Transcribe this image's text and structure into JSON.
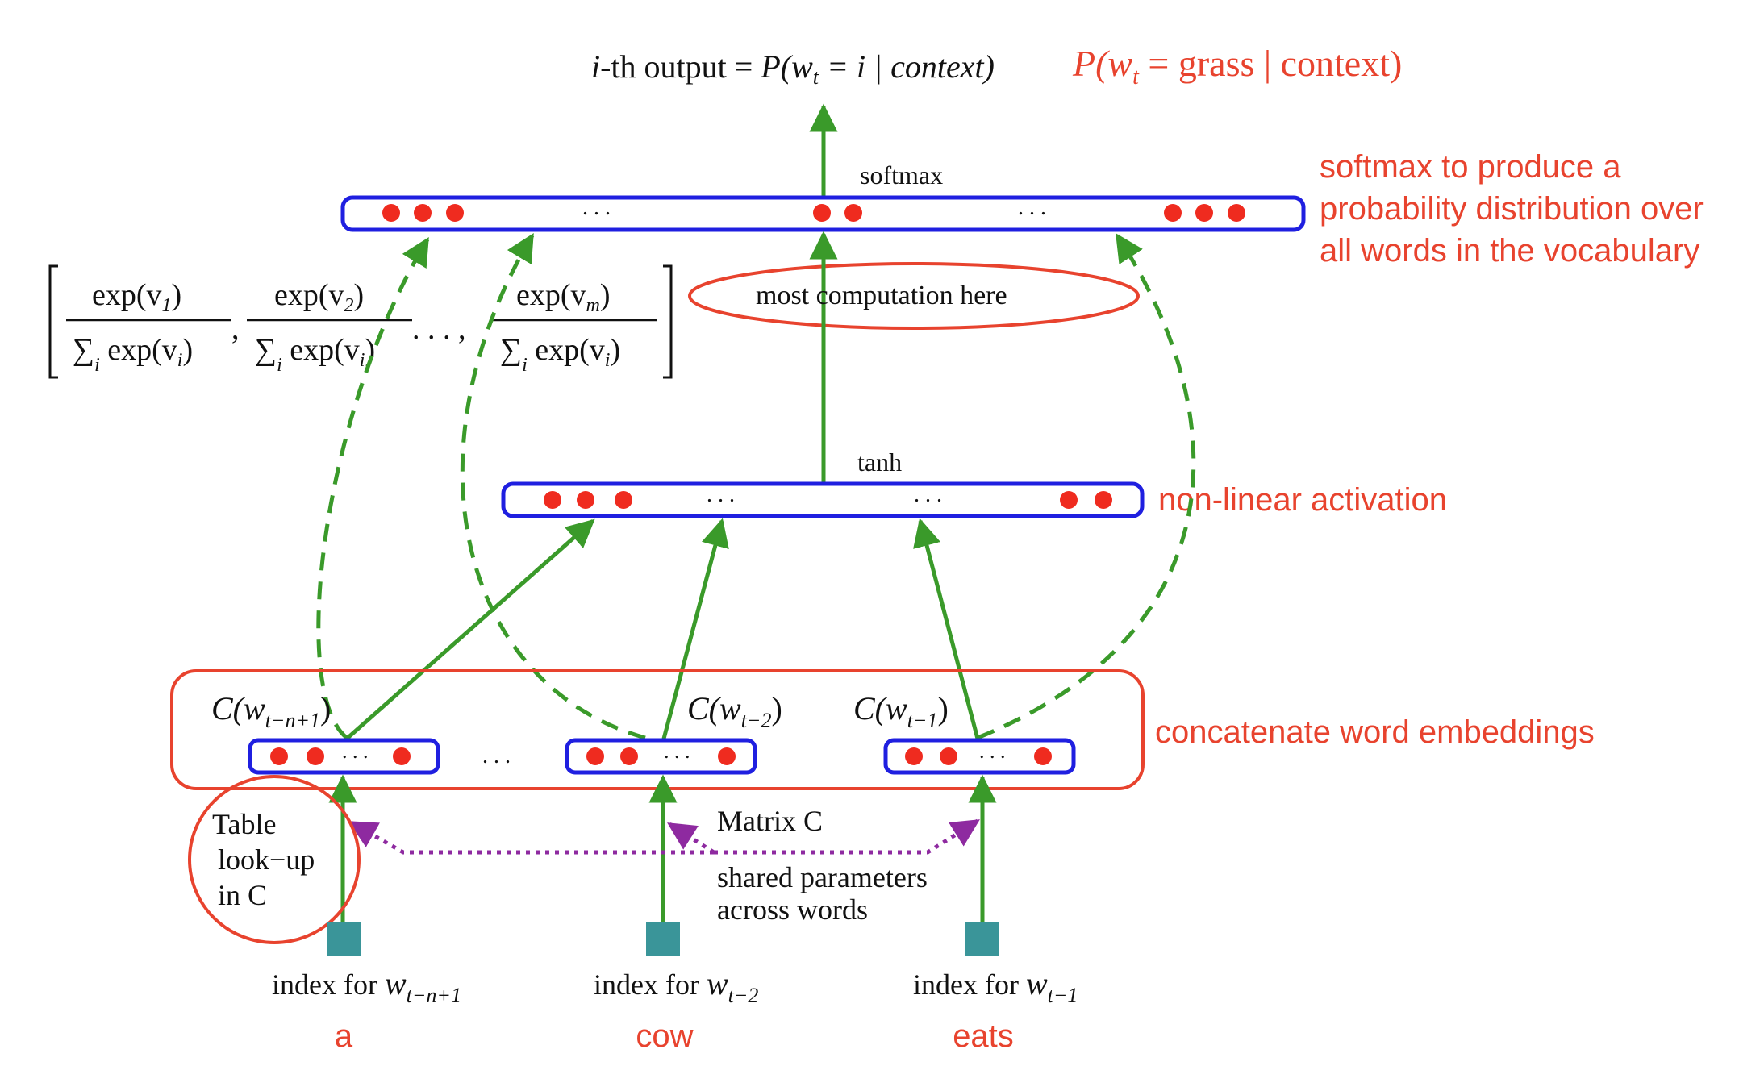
{
  "colors": {
    "blue": "#1f1fe0",
    "red": "#e8432e",
    "green": "#3a9a2a",
    "teal": "#3a9599",
    "purple": "#8e2aa0",
    "dot": "#ef2b1f"
  },
  "top_output": {
    "formula_prefix": "i",
    "formula_mid": "-th output = ",
    "formula_body": "P(w",
    "formula_sub": "t",
    "formula_rest": " = i | context)",
    "red_prefix": "P(w",
    "red_sub": "t",
    "red_rest": " = grass | context)"
  },
  "layers": {
    "softmax_label": "softmax",
    "tanh_label": "tanh",
    "ellipsis": ". . ."
  },
  "annotations": {
    "softmax_note_line1": "softmax to produce a",
    "softmax_note_line2": "probability distribution over",
    "softmax_note_line3": "all words in the vocabulary",
    "computation_note": "most  computation here",
    "nonlinear_note": "non-linear activation",
    "concat_note": "concatenate word embeddings"
  },
  "softmax_formula": {
    "num1": "exp(v",
    "num1_sub": "1",
    "num2": "exp(v",
    "num2_sub": "2",
    "numm": "exp(v",
    "numm_sub": "m",
    "den": "∑",
    "den_sub": "i",
    "den_rest": " exp(v",
    "den_var_sub": "i",
    "separator": ",",
    "dots": ". . . ,"
  },
  "embeddings": {
    "label1": "C(w",
    "label1_sub": "t−n+1",
    "label2": "C(w",
    "label2_sub": "t−2",
    "label3": "C(w",
    "label3_sub": "t−1",
    "between_dots": ". . ."
  },
  "lookup": {
    "line1": "Table",
    "line2": "look−up",
    "line3": "in C",
    "matrix_label": "Matrix C",
    "shared_line1": "shared parameters",
    "shared_line2": "across words"
  },
  "inputs": {
    "index_prefix": "index for ",
    "index1_var": "w",
    "index1_sub": "t−n+1",
    "index2_var": "w",
    "index2_sub": "t−2",
    "index3_var": "w",
    "index3_sub": "t−1",
    "word1": "a",
    "word2": "cow",
    "word3": "eats"
  }
}
